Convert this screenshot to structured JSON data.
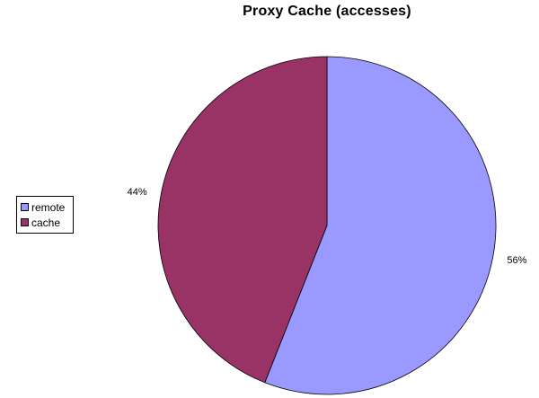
{
  "chart_data": {
    "type": "pie",
    "title": "Proxy Cache (accesses)",
    "categories": [
      "remote",
      "cache"
    ],
    "values": [
      56,
      44
    ],
    "data_labels": [
      "56%",
      "44%"
    ],
    "colors": [
      "#9999ff",
      "#993366"
    ],
    "legend_placement": "left",
    "start_angle_deg": 0,
    "direction": "clockwise"
  }
}
